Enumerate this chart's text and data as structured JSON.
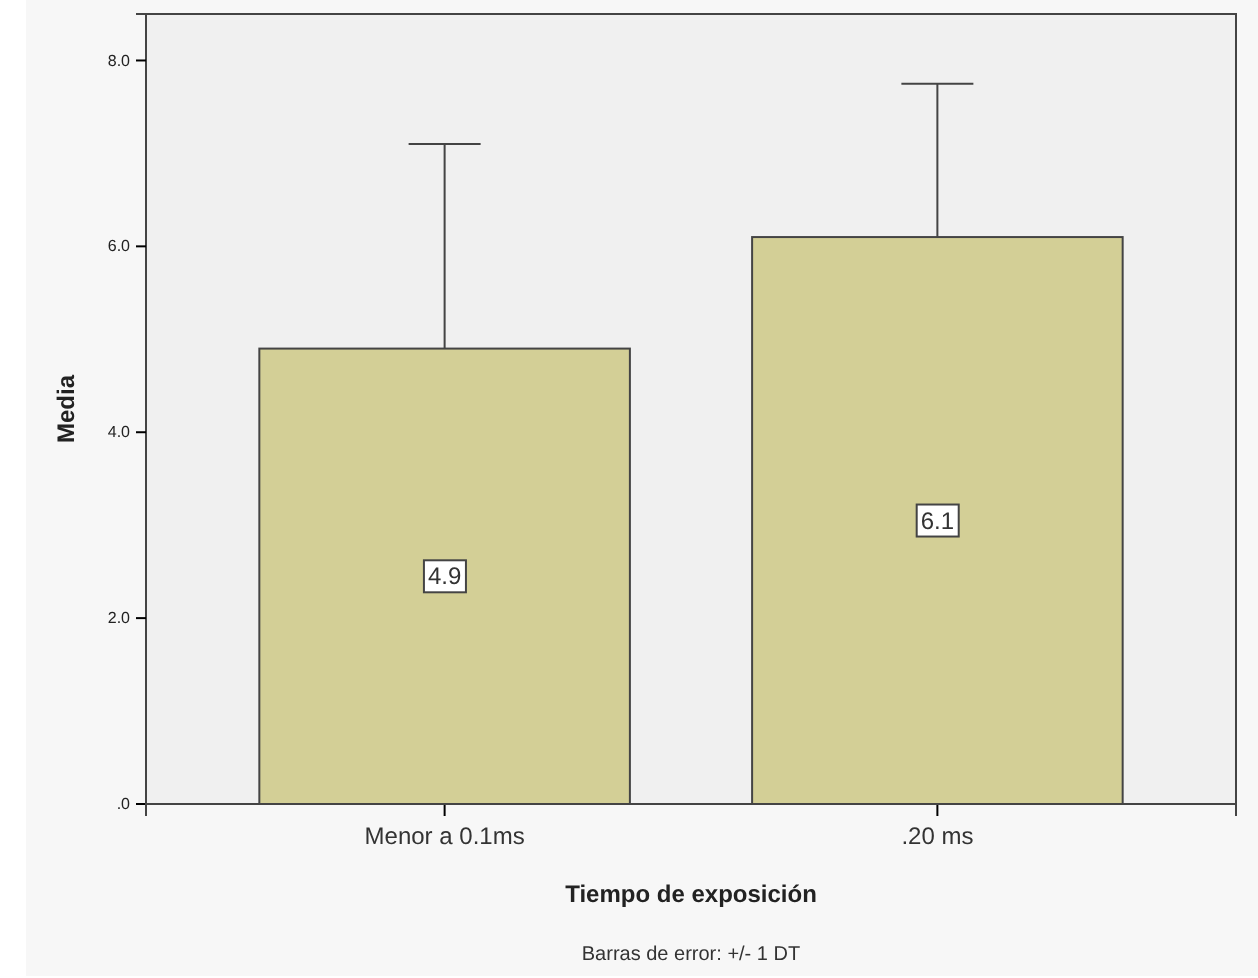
{
  "chart_data": {
    "type": "bar",
    "xlabel": "Tiempo de exposición",
    "ylabel": "Media",
    "categories": [
      "Menor a 0.1ms",
      ".20 ms"
    ],
    "values": [
      4.9,
      6.1
    ],
    "errors": [
      [
        4.9,
        7.1
      ],
      [
        6.1,
        7.75
      ]
    ],
    "color": "#d3cf96",
    "data_labels": true,
    "ylim": [
      0,
      8.5
    ],
    "yticks": [
      {
        "value": 0,
        "label": ".0"
      },
      {
        "value": 2,
        "label": "2.0"
      },
      {
        "value": 4,
        "label": "4.0"
      },
      {
        "value": 6,
        "label": "6.0"
      },
      {
        "value": 8,
        "label": "8.0"
      }
    ],
    "grid": false,
    "annotations": [
      "Barras de error: +/- 1 DT"
    ]
  }
}
